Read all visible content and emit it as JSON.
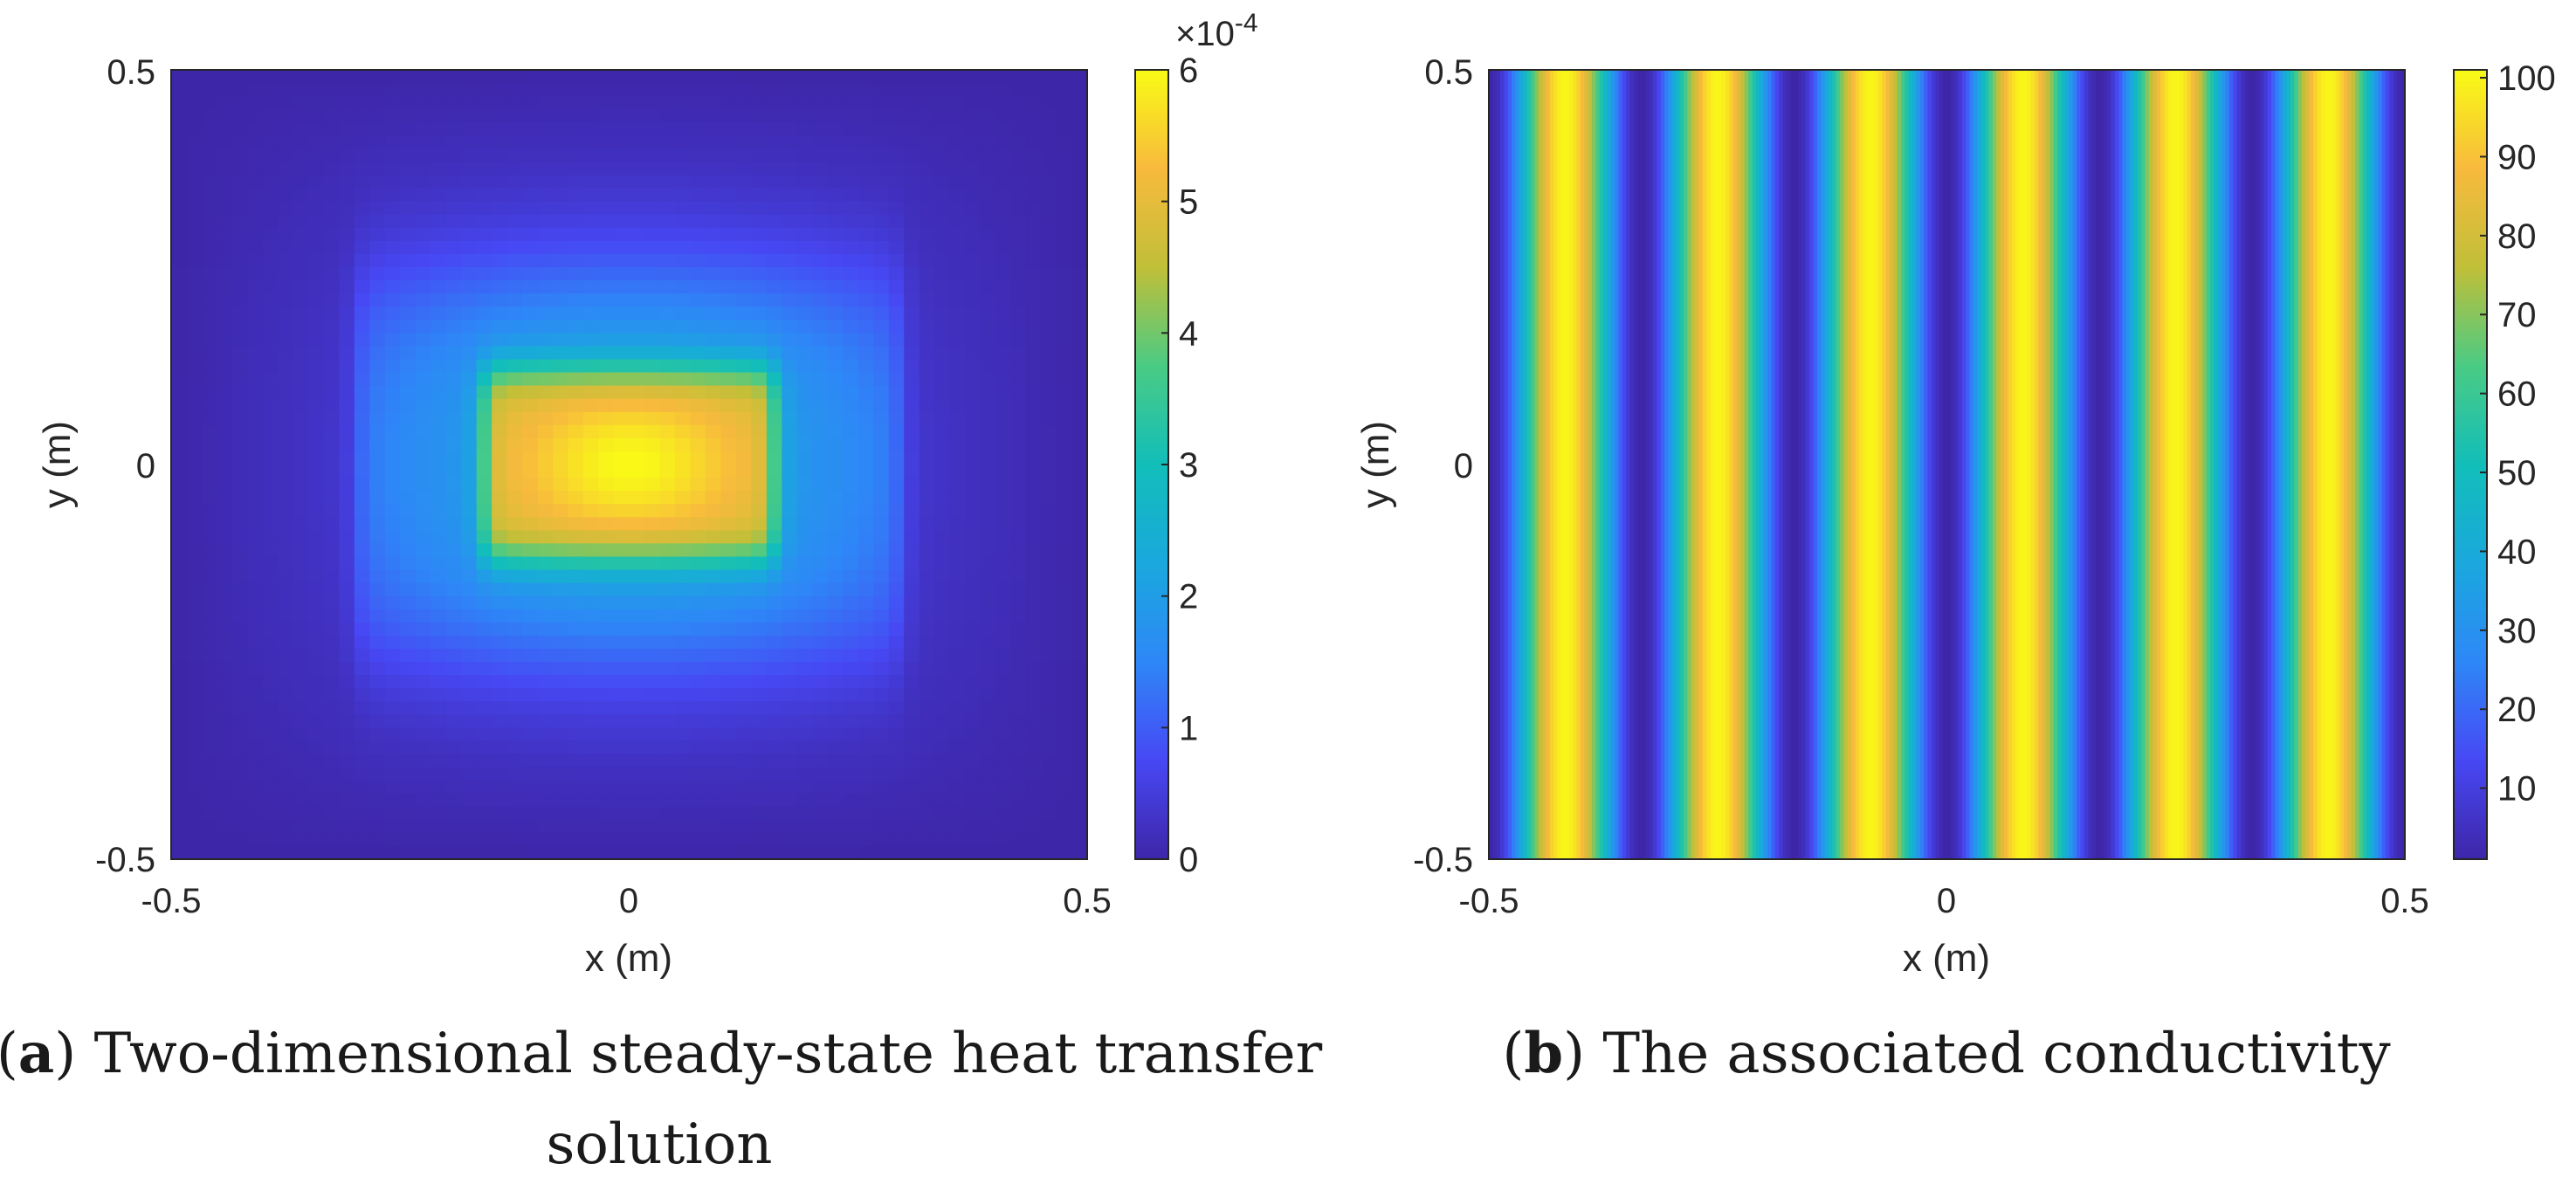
{
  "chart_data": [
    {
      "type": "heatmap",
      "panel_label": "a",
      "caption_line1": "Two-dimensional steady-state heat transfer",
      "caption_line2": "solution",
      "xlabel": "x (m)",
      "ylabel": "y (m)",
      "xlim": [
        -0.5,
        0.5
      ],
      "ylim": [
        -0.5,
        0.5
      ],
      "x_ticks": [
        "-0.5",
        "0",
        "0.5"
      ],
      "y_ticks": [
        "-0.5",
        "0",
        "0.5"
      ],
      "colorbar": {
        "range": [
          0,
          6
        ],
        "ticks": [
          "0",
          "1",
          "2",
          "3",
          "4",
          "5",
          "6"
        ],
        "exponent_label": "×10",
        "exponent": "-4"
      },
      "field_description": "temperature peak ~6e-4 at center, plateau for |x|<0.16 and |y|<0.12, decays toward edges",
      "peak_value": 6.0,
      "colormap": "parula"
    },
    {
      "type": "heatmap",
      "panel_label": "b",
      "caption": "The associated conductivity",
      "xlabel": "x (m)",
      "ylabel": "y (m)",
      "xlim": [
        -0.5,
        0.5
      ],
      "ylim": [
        -0.5,
        0.5
      ],
      "x_ticks": [
        "-0.5",
        "0",
        "0.5"
      ],
      "y_ticks": [
        "-0.5",
        "0",
        "0.5"
      ],
      "colorbar": {
        "range": [
          1,
          101
        ],
        "ticks": [
          "10",
          "20",
          "30",
          "40",
          "50",
          "60",
          "70",
          "80",
          "90",
          "100"
        ]
      },
      "field_description": "conductivity varies only in x as a cosine with 6 periods across [-0.5, 0.5], min ~1, max ~100",
      "stripe_periods": 6,
      "min_value": 1,
      "max_value": 100,
      "colormap": "parula"
    }
  ]
}
